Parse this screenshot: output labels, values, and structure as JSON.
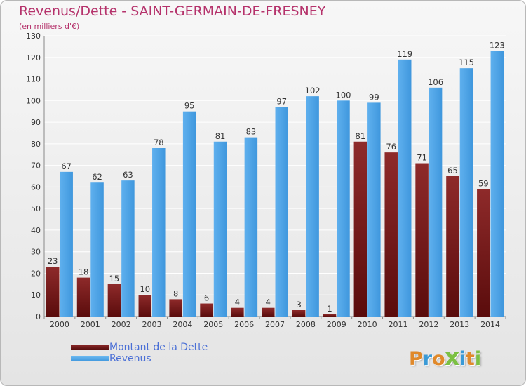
{
  "header": {
    "title": "Revenus/Dette - SAINT-GERMAIN-DE-FRESNEY",
    "subtitle": "(en milliers d'€)"
  },
  "chart_data": {
    "type": "bar",
    "categories": [
      "2000",
      "2001",
      "2002",
      "2003",
      "2004",
      "2005",
      "2006",
      "2007",
      "2008",
      "2009",
      "2010",
      "2011",
      "2012",
      "2013",
      "2014"
    ],
    "series": [
      {
        "name": "Montant de la Dette",
        "color": "#7a1a1a",
        "values": [
          23,
          18,
          15,
          10,
          8,
          6,
          4,
          4,
          3,
          1,
          81,
          76,
          71,
          65,
          59
        ]
      },
      {
        "name": "Revenus",
        "color": "#4aa3e6",
        "values": [
          67,
          62,
          63,
          78,
          95,
          81,
          83,
          97,
          102,
          100,
          99,
          119,
          106,
          115,
          123
        ]
      }
    ],
    "y_ticks": [
      "0",
      "10",
      "20",
      "30",
      "40",
      "50",
      "60",
      "70",
      "80",
      "90",
      "100",
      "110",
      "120",
      "130"
    ],
    "ylim": [
      0,
      130
    ],
    "grid": true,
    "legend_position": "bottom-left",
    "data_labels": true
  },
  "legend": {
    "items": [
      {
        "label": "Montant de la Dette",
        "color": "#6b1414"
      },
      {
        "label": "Revenus",
        "color": "#4aa3e6"
      }
    ]
  },
  "logo": {
    "letters": [
      "P",
      "r",
      "o",
      "x",
      "i",
      "t",
      "i"
    ],
    "colors": [
      "#e0892a",
      "#3a9ad6",
      "#e0892a",
      "#7cc043",
      "#3a9ad6",
      "#e0892a",
      "#7cc043"
    ]
  }
}
